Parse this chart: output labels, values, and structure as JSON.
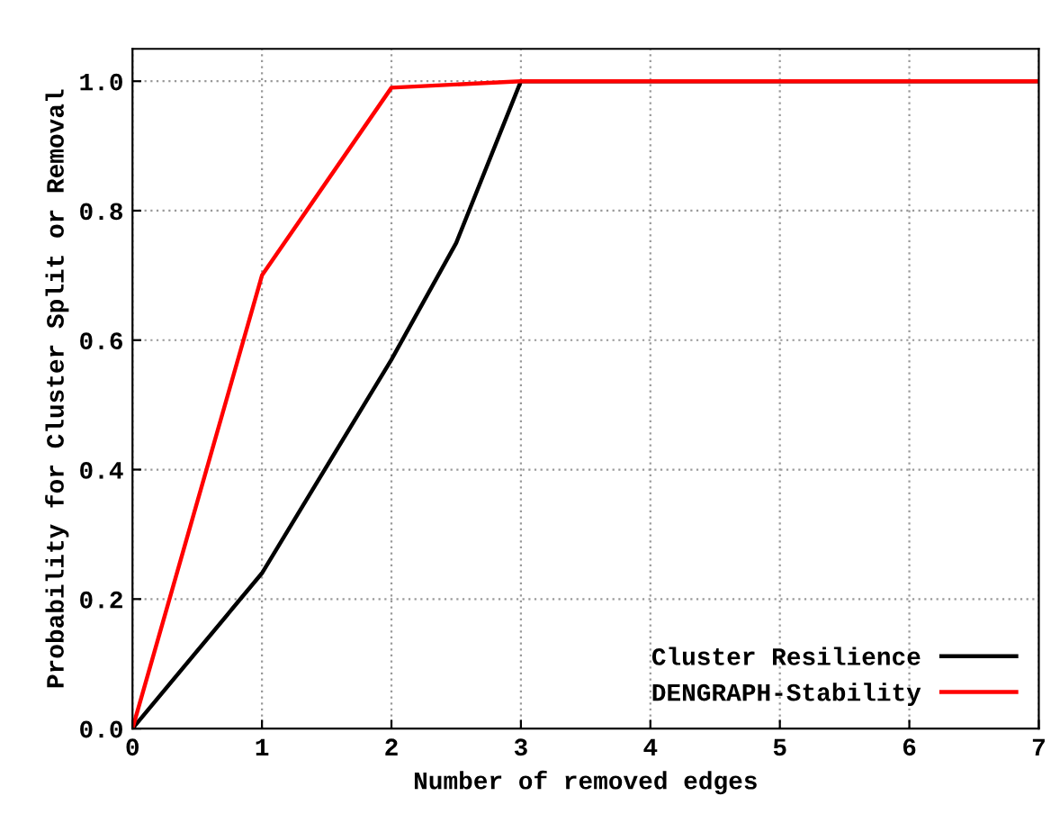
{
  "chart_data": {
    "type": "line",
    "xlabel": "Number of removed edges",
    "ylabel": "Probability for Cluster Split or Removal",
    "xlim": [
      0,
      7
    ],
    "xticks": [
      0,
      1,
      2,
      3,
      4,
      5,
      6,
      7
    ],
    "ylim": [
      0,
      1.05
    ],
    "yticks": [
      {
        "value": 0,
        "label": "0.0"
      },
      {
        "value": 0.2,
        "label": "0.2"
      },
      {
        "value": 0.4,
        "label": "0.4"
      },
      {
        "value": 0.6,
        "label": "0.6"
      },
      {
        "value": 0.8,
        "label": "0.8"
      },
      {
        "value": 1,
        "label": "1.0"
      }
    ],
    "grid": true,
    "legend": "bottom right",
    "marker": "none",
    "line_style": "solid",
    "series": [
      {
        "name": "Cluster Resilience",
        "color": "#000000",
        "x": [
          0,
          1,
          2,
          2.5,
          3,
          7
        ],
        "values": [
          0,
          0.24,
          0.57,
          0.75,
          1.0,
          1.0
        ]
      },
      {
        "name": "DENGRAPH-Stability",
        "color": "#ff0000",
        "x": [
          0,
          1,
          2,
          3,
          7
        ],
        "values": [
          0,
          0.7,
          0.99,
          1.0,
          1.0
        ]
      }
    ]
  }
}
